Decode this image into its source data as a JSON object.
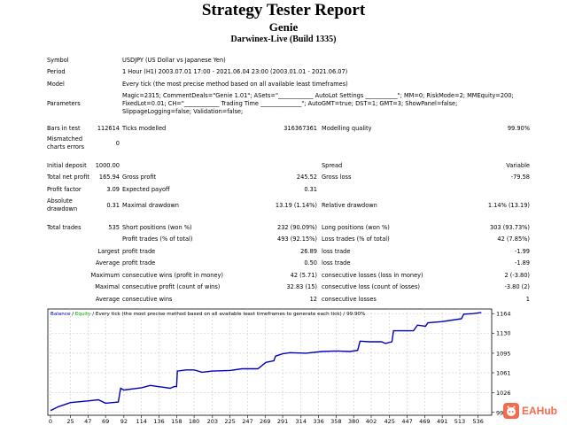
{
  "header": {
    "title": "Strategy Tester Report",
    "expert": "Genie",
    "server": "Darwinex-Live (Build 1335)"
  },
  "info": [
    {
      "label": "Symbol",
      "lines": [
        "USDJPY (US Dollar vs Japanese Yen)"
      ]
    },
    {
      "label": "Period",
      "lines": [
        "1 Hour (H1) 2003.07.01 17:00 - 2021.06.04 23:00 (2003.01.01 - 2021.06.07)"
      ]
    },
    {
      "label": "Model",
      "lines": [
        "Every tick (the most precise method based on all available least timeframes)"
      ]
    },
    {
      "label": "Parameters",
      "lines": [
        "Magic=2315; CommentDeals=\"Genie 1.01\"; ASets=\"____________ AutoLot Settings ___________\"; MM=0; RiskMode=2; MMEquity=200;",
        "FixedLot=0.01; CH=\"____________ Trading Time ______________\"; AutoGMT=true; DST=1; GMT=3; ShowPanel=false;",
        "SlippageLogging=false; Validation=false;"
      ]
    }
  ],
  "stats": [
    {
      "l1": "Bars in test",
      "v1": "112614",
      "l2": "Ticks modelled",
      "v2": "316367361",
      "l3": "Modelling quality",
      "v3": "99.90%"
    },
    {
      "l1": "Mismatched\ncharts errors",
      "v1": "0",
      "l2": "",
      "v2": "",
      "l3": "",
      "v3": ""
    },
    {
      "l1": "Initial deposit",
      "v1": "1000.00",
      "l2": "",
      "v2": "",
      "l3": "Spread",
      "v3": "Variable"
    },
    {
      "l1": "Total net profit",
      "v1": "165.94",
      "l2": "Gross profit",
      "v2": "245.52",
      "l3": "Gross loss",
      "v3": "-79.58"
    },
    {
      "l1": "Profit factor",
      "v1": "3.09",
      "l2": "Expected payoff",
      "v2": "0.31",
      "l3": "",
      "v3": ""
    },
    {
      "l1": "Absolute\ndrawdown",
      "v1": "0.31",
      "l2": "Maximal drawdown",
      "v2": "13.19 (1.14%)",
      "l3": "Relative drawdown",
      "v3": "1.14% (13.19)"
    },
    {
      "l1": "Total trades",
      "v1": "535",
      "l2": "Short positions (won %)",
      "v2": "232 (90.09%)",
      "l3": "Long positions (won %)",
      "v3": "303 (93.73%)"
    },
    {
      "l1": "",
      "v1": "",
      "l2": "Profit trades (% of total)",
      "v2": "493 (92.15%)",
      "l3": "Loss trades (% of total)",
      "v3": "42 (7.85%)"
    },
    {
      "l1": "",
      "v1": "Largest",
      "l2": "profit trade",
      "v2": "26.89",
      "l3": "loss trade",
      "v3": "-1.99"
    },
    {
      "l1": "",
      "v1": "Average",
      "l2": "profit trade",
      "v2": "0.50",
      "l3": "loss trade",
      "v3": "-1.89"
    },
    {
      "l1": "",
      "v1": "Maximum",
      "l2": "consecutive wins (profit in money)",
      "v2": "42 (5.71)",
      "l3": "consecutive losses (loss in money)",
      "v3": "2 (-3.80)"
    },
    {
      "l1": "",
      "v1": "Maximal",
      "l2": "consecutive profit (count of wins)",
      "v2": "32.83 (15)",
      "l3": "consecutive loss (count of losses)",
      "v3": "-3.80 (2)"
    },
    {
      "l1": "",
      "v1": "Average",
      "l2": "consecutive wins",
      "v2": "12",
      "l3": "consecutive losses",
      "v3": "1"
    }
  ],
  "chart_data": {
    "type": "line",
    "legend": {
      "balance": "Balance",
      "sep1": " / ",
      "equity": "Equity",
      "rest": " / Every tick (the most precise method based on all available least timeframes to generate each tick) / 99.90%"
    },
    "x_ticks": [
      0,
      25,
      47,
      69,
      92,
      114,
      136,
      158,
      180,
      203,
      225,
      247,
      269,
      291,
      314,
      336,
      358,
      380,
      402,
      425,
      447,
      469,
      491,
      513,
      536
    ],
    "y_ticks": [
      992,
      1026,
      1061,
      1095,
      1130,
      1164
    ],
    "xlim": [
      0,
      553
    ],
    "ylim": [
      987,
      1172
    ],
    "grid": true,
    "series": [
      {
        "name": "Balance",
        "color": "#0000c0",
        "points": [
          [
            0,
            995
          ],
          [
            10,
            1002
          ],
          [
            25,
            1009
          ],
          [
            47,
            1012
          ],
          [
            60,
            1014
          ],
          [
            69,
            1008
          ],
          [
            85,
            1010
          ],
          [
            88,
            1034
          ],
          [
            92,
            1031
          ],
          [
            114,
            1035
          ],
          [
            125,
            1039
          ],
          [
            140,
            1036
          ],
          [
            150,
            1034
          ],
          [
            155,
            1037
          ],
          [
            158,
            1037
          ],
          [
            159,
            1064
          ],
          [
            170,
            1066
          ],
          [
            180,
            1066
          ],
          [
            190,
            1062
          ],
          [
            203,
            1064
          ],
          [
            225,
            1065
          ],
          [
            240,
            1068
          ],
          [
            260,
            1068
          ],
          [
            270,
            1079
          ],
          [
            280,
            1082
          ],
          [
            282,
            1090
          ],
          [
            291,
            1094
          ],
          [
            300,
            1096
          ],
          [
            320,
            1095
          ],
          [
            340,
            1098
          ],
          [
            358,
            1099
          ],
          [
            375,
            1098
          ],
          [
            385,
            1100
          ],
          [
            388,
            1116
          ],
          [
            400,
            1115
          ],
          [
            415,
            1115
          ],
          [
            420,
            1112
          ],
          [
            428,
            1115
          ],
          [
            430,
            1134
          ],
          [
            445,
            1134
          ],
          [
            455,
            1134
          ],
          [
            460,
            1144
          ],
          [
            470,
            1142
          ],
          [
            473,
            1148
          ],
          [
            490,
            1150
          ],
          [
            515,
            1155
          ],
          [
            518,
            1163
          ],
          [
            530,
            1164
          ],
          [
            540,
            1166
          ]
        ]
      }
    ]
  },
  "watermark": {
    "text": "EAHub",
    "color": "#f26b4f"
  }
}
